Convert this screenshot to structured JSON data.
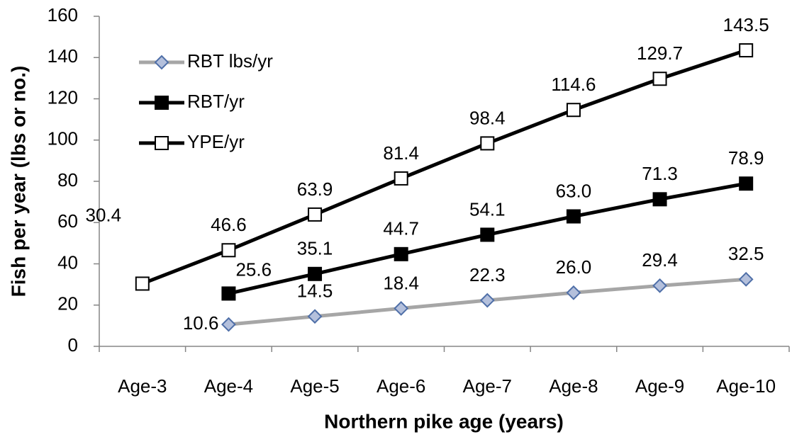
{
  "chart_data": {
    "type": "line",
    "categories": [
      "Age-3",
      "Age-4",
      "Age-5",
      "Age-6",
      "Age-7",
      "Age-8",
      "Age-9",
      "Age-10"
    ],
    "series": [
      {
        "name": "RBT lbs/yr",
        "color": "#a6a6a6",
        "marker": "diamond",
        "marker_fill": "#b4c0dc",
        "marker_stroke": "#4f6fa8",
        "values": [
          null,
          10.6,
          14.5,
          18.4,
          22.3,
          26.0,
          29.4,
          32.5
        ],
        "value_labels": [
          null,
          "10.6",
          "14.5",
          "18.4",
          "22.3",
          "26.0",
          "29.4",
          "32.5"
        ]
      },
      {
        "name": "RBT/yr",
        "color": "#000000",
        "marker": "square",
        "marker_fill": "#000000",
        "marker_stroke": "#000000",
        "values": [
          null,
          25.6,
          35.1,
          44.7,
          54.1,
          63.0,
          71.3,
          78.9
        ],
        "value_labels": [
          null,
          "25.6",
          "35.1",
          "44.7",
          "54.1",
          "63.0",
          "71.3",
          "78.9"
        ]
      },
      {
        "name": "YPE/yr",
        "color": "#000000",
        "marker": "square",
        "marker_fill": "#ffffff",
        "marker_stroke": "#000000",
        "values": [
          30.4,
          46.6,
          63.9,
          81.4,
          98.4,
          114.6,
          129.7,
          143.5
        ],
        "value_labels": [
          "30.4",
          "46.6",
          "63.9",
          "81.4",
          "98.4",
          "114.6",
          "129.7",
          "143.5"
        ]
      }
    ],
    "xlabel": "Northern pike age (years)",
    "ylabel": "Fish per year (lbs or no.)",
    "ylim": [
      0,
      160
    ],
    "yticks": [
      0,
      20,
      40,
      60,
      80,
      100,
      120,
      140,
      160
    ],
    "grid": false,
    "legend": "upper left"
  }
}
